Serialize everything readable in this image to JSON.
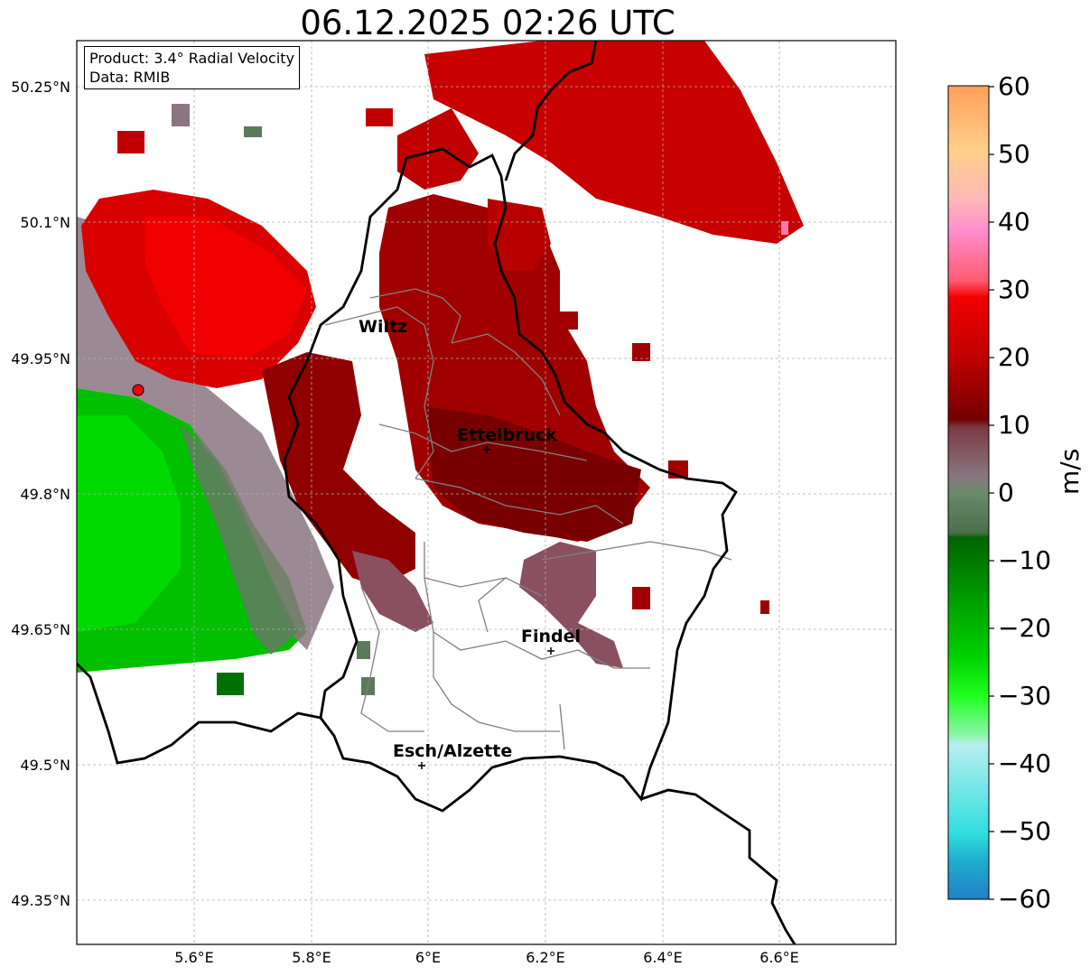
{
  "title": "06.12.2025 02:26 UTC",
  "info_box": {
    "product": "Product: 3.4° Radial Velocity",
    "data": "Data: RMIB"
  },
  "map": {
    "lat_ticks": [
      "50.25°N",
      "50.1°N",
      "49.95°N",
      "49.8°N",
      "49.65°N",
      "49.5°N",
      "49.35°N"
    ],
    "lon_ticks": [
      "5.6°E",
      "5.8°E",
      "6°E",
      "6.2°E",
      "6.4°E",
      "6.6°E"
    ],
    "grid": true,
    "places": [
      {
        "name": "Wiltz",
        "lon": 5.9,
        "lat": 49.97,
        "marker": false
      },
      {
        "name": "Ettelbruck",
        "lon": 6.1,
        "lat": 49.85,
        "marker": true
      },
      {
        "name": "Findel",
        "lon": 6.21,
        "lat": 49.63,
        "marker": true
      },
      {
        "name": "Esch/Alzette",
        "lon": 5.99,
        "lat": 49.5,
        "marker": true
      }
    ],
    "radar_site": {
      "lon": 5.5,
      "lat": 49.91,
      "color": "#ff0000"
    }
  },
  "colorbar": {
    "unit": "m/s",
    "ticks": [
      "60",
      "50",
      "40",
      "30",
      "20",
      "10",
      "0",
      "−10",
      "−20",
      "−30",
      "−40",
      "−50",
      "−60"
    ],
    "range": [
      -60,
      60
    ],
    "colors": {
      "neg_strong": "#1f78c8",
      "neg_cyan": "#2adada",
      "neg_light": "#b4f0f0",
      "neg_green_light": "#55ee55",
      "neg_green": "#00dd00",
      "neg_dark_green": "#005a00",
      "zero_green": "#5a7a5a",
      "zero_gray": "#8a7080",
      "pos_dark_red": "#6e0000",
      "pos_red": "#dd0000",
      "pos_pink": "#ff6a88",
      "pos_light_pink": "#ff88cc",
      "pos_peach": "#ffdca0",
      "pos_orange": "#ffa060"
    }
  }
}
